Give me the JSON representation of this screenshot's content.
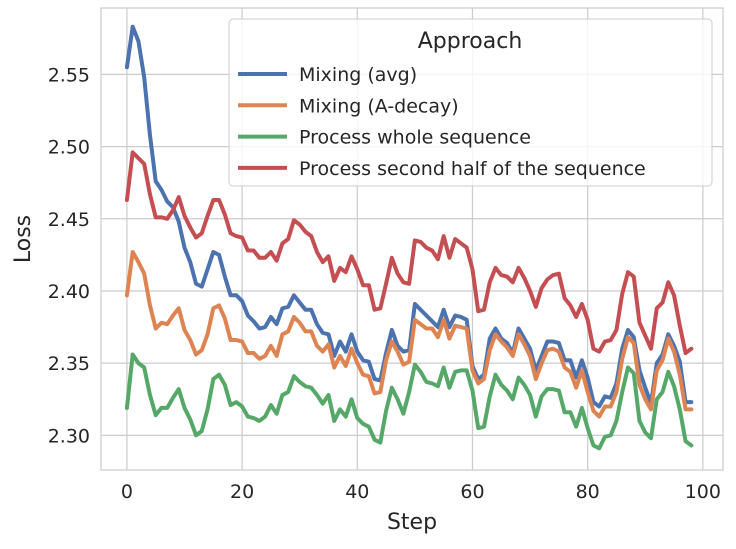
{
  "chart_data": {
    "type": "line",
    "xlabel": "Step",
    "ylabel": "Loss",
    "xlim": [
      -4.5,
      103.5
    ],
    "ylim": [
      2.276,
      2.596
    ],
    "xticks": [
      0,
      20,
      40,
      60,
      80,
      100
    ],
    "yticks": [
      2.3,
      2.35,
      2.4,
      2.45,
      2.5,
      2.55
    ],
    "xtick_labels": [
      "0",
      "20",
      "40",
      "60",
      "80",
      "100"
    ],
    "ytick_labels": [
      "2.30",
      "2.35",
      "2.40",
      "2.45",
      "2.50",
      "2.55"
    ],
    "grid": true,
    "legend": {
      "title": "Approach",
      "position": "top-right"
    },
    "x": [
      0,
      1,
      2,
      3,
      4,
      5,
      6,
      7,
      8,
      9,
      10,
      11,
      12,
      13,
      14,
      15,
      16,
      17,
      18,
      19,
      20,
      21,
      22,
      23,
      24,
      25,
      26,
      27,
      28,
      29,
      30,
      31,
      32,
      33,
      34,
      35,
      36,
      37,
      38,
      39,
      40,
      41,
      42,
      43,
      44,
      45,
      46,
      47,
      48,
      49,
      50,
      51,
      52,
      53,
      54,
      55,
      56,
      57,
      58,
      59,
      60,
      61,
      62,
      63,
      64,
      65,
      66,
      67,
      68,
      69,
      70,
      71,
      72,
      73,
      74,
      75,
      76,
      77,
      78,
      79,
      80,
      81,
      82,
      83,
      84,
      85,
      86,
      87,
      88,
      89,
      90,
      91,
      92,
      93,
      94,
      95,
      96,
      97,
      98
    ],
    "series": [
      {
        "name": "Mixing (avg)",
        "color": "#4c72b0",
        "values": [
          2.555,
          2.583,
          2.573,
          2.548,
          2.508,
          2.476,
          2.47,
          2.462,
          2.458,
          2.448,
          2.43,
          2.42,
          2.405,
          2.403,
          2.415,
          2.427,
          2.425,
          2.41,
          2.397,
          2.397,
          2.393,
          2.383,
          2.379,
          2.374,
          2.375,
          2.382,
          2.377,
          2.388,
          2.389,
          2.397,
          2.392,
          2.387,
          2.387,
          2.377,
          2.371,
          2.37,
          2.355,
          2.365,
          2.358,
          2.37,
          2.358,
          2.352,
          2.351,
          2.339,
          2.338,
          2.357,
          2.373,
          2.362,
          2.358,
          2.359,
          2.391,
          2.387,
          2.383,
          2.379,
          2.375,
          2.387,
          2.375,
          2.383,
          2.382,
          2.38,
          2.348,
          2.339,
          2.342,
          2.367,
          2.374,
          2.367,
          2.364,
          2.357,
          2.374,
          2.367,
          2.36,
          2.345,
          2.355,
          2.365,
          2.365,
          2.364,
          2.352,
          2.352,
          2.34,
          2.352,
          2.34,
          2.323,
          2.32,
          2.327,
          2.326,
          2.336,
          2.36,
          2.373,
          2.368,
          2.345,
          2.333,
          2.322,
          2.35,
          2.356,
          2.37,
          2.362,
          2.351,
          2.323,
          2.323
        ]
      },
      {
        "name": "Mixing (A-decay)",
        "color": "#dd8452",
        "values": [
          2.397,
          2.427,
          2.42,
          2.412,
          2.39,
          2.374,
          2.378,
          2.377,
          2.383,
          2.388,
          2.373,
          2.366,
          2.356,
          2.359,
          2.37,
          2.388,
          2.39,
          2.381,
          2.366,
          2.366,
          2.365,
          2.357,
          2.357,
          2.353,
          2.355,
          2.362,
          2.355,
          2.37,
          2.372,
          2.382,
          2.378,
          2.372,
          2.372,
          2.362,
          2.358,
          2.363,
          2.347,
          2.355,
          2.348,
          2.36,
          2.35,
          2.342,
          2.341,
          2.329,
          2.33,
          2.352,
          2.365,
          2.358,
          2.349,
          2.351,
          2.38,
          2.377,
          2.374,
          2.374,
          2.368,
          2.38,
          2.367,
          2.376,
          2.375,
          2.374,
          2.345,
          2.336,
          2.339,
          2.359,
          2.37,
          2.365,
          2.361,
          2.355,
          2.37,
          2.363,
          2.355,
          2.339,
          2.35,
          2.359,
          2.36,
          2.358,
          2.347,
          2.344,
          2.333,
          2.345,
          2.33,
          2.317,
          2.313,
          2.32,
          2.32,
          2.33,
          2.353,
          2.368,
          2.364,
          2.335,
          2.325,
          2.318,
          2.345,
          2.352,
          2.367,
          2.358,
          2.342,
          2.318,
          2.318
        ]
      },
      {
        "name": "Process whole sequence",
        "color": "#55a868",
        "values": [
          2.319,
          2.356,
          2.35,
          2.347,
          2.328,
          2.314,
          2.319,
          2.319,
          2.326,
          2.332,
          2.319,
          2.311,
          2.3,
          2.303,
          2.318,
          2.339,
          2.342,
          2.335,
          2.321,
          2.323,
          2.32,
          2.313,
          2.312,
          2.31,
          2.313,
          2.321,
          2.315,
          2.328,
          2.33,
          2.341,
          2.337,
          2.334,
          2.333,
          2.328,
          2.322,
          2.328,
          2.31,
          2.318,
          2.313,
          2.325,
          2.312,
          2.308,
          2.306,
          2.297,
          2.295,
          2.317,
          2.333,
          2.325,
          2.315,
          2.33,
          2.349,
          2.344,
          2.337,
          2.336,
          2.334,
          2.347,
          2.333,
          2.344,
          2.345,
          2.345,
          2.331,
          2.305,
          2.306,
          2.327,
          2.342,
          2.335,
          2.331,
          2.325,
          2.34,
          2.335,
          2.328,
          2.313,
          2.327,
          2.332,
          2.332,
          2.331,
          2.316,
          2.316,
          2.306,
          2.319,
          2.305,
          2.293,
          2.291,
          2.299,
          2.3,
          2.31,
          2.33,
          2.347,
          2.343,
          2.31,
          2.302,
          2.298,
          2.325,
          2.33,
          2.344,
          2.334,
          2.318,
          2.296,
          2.293
        ]
      },
      {
        "name": "Process second half of the sequence",
        "color": "#c44e52",
        "values": [
          2.463,
          2.496,
          2.492,
          2.488,
          2.467,
          2.451,
          2.451,
          2.45,
          2.456,
          2.465,
          2.452,
          2.444,
          2.437,
          2.44,
          2.452,
          2.463,
          2.463,
          2.453,
          2.44,
          2.438,
          2.437,
          2.428,
          2.428,
          2.423,
          2.423,
          2.427,
          2.421,
          2.433,
          2.436,
          2.449,
          2.446,
          2.441,
          2.438,
          2.427,
          2.42,
          2.424,
          2.407,
          2.416,
          2.413,
          2.424,
          2.415,
          2.404,
          2.404,
          2.387,
          2.388,
          2.405,
          2.423,
          2.412,
          2.406,
          2.405,
          2.435,
          2.434,
          2.43,
          2.428,
          2.422,
          2.438,
          2.423,
          2.436,
          2.433,
          2.43,
          2.415,
          2.386,
          2.387,
          2.406,
          2.416,
          2.411,
          2.41,
          2.406,
          2.416,
          2.409,
          2.4,
          2.389,
          2.402,
          2.408,
          2.411,
          2.412,
          2.395,
          2.39,
          2.382,
          2.391,
          2.38,
          2.36,
          2.358,
          2.365,
          2.366,
          2.373,
          2.398,
          2.413,
          2.41,
          2.378,
          2.369,
          2.36,
          2.388,
          2.392,
          2.406,
          2.397,
          2.376,
          2.357,
          2.36
        ]
      }
    ]
  }
}
